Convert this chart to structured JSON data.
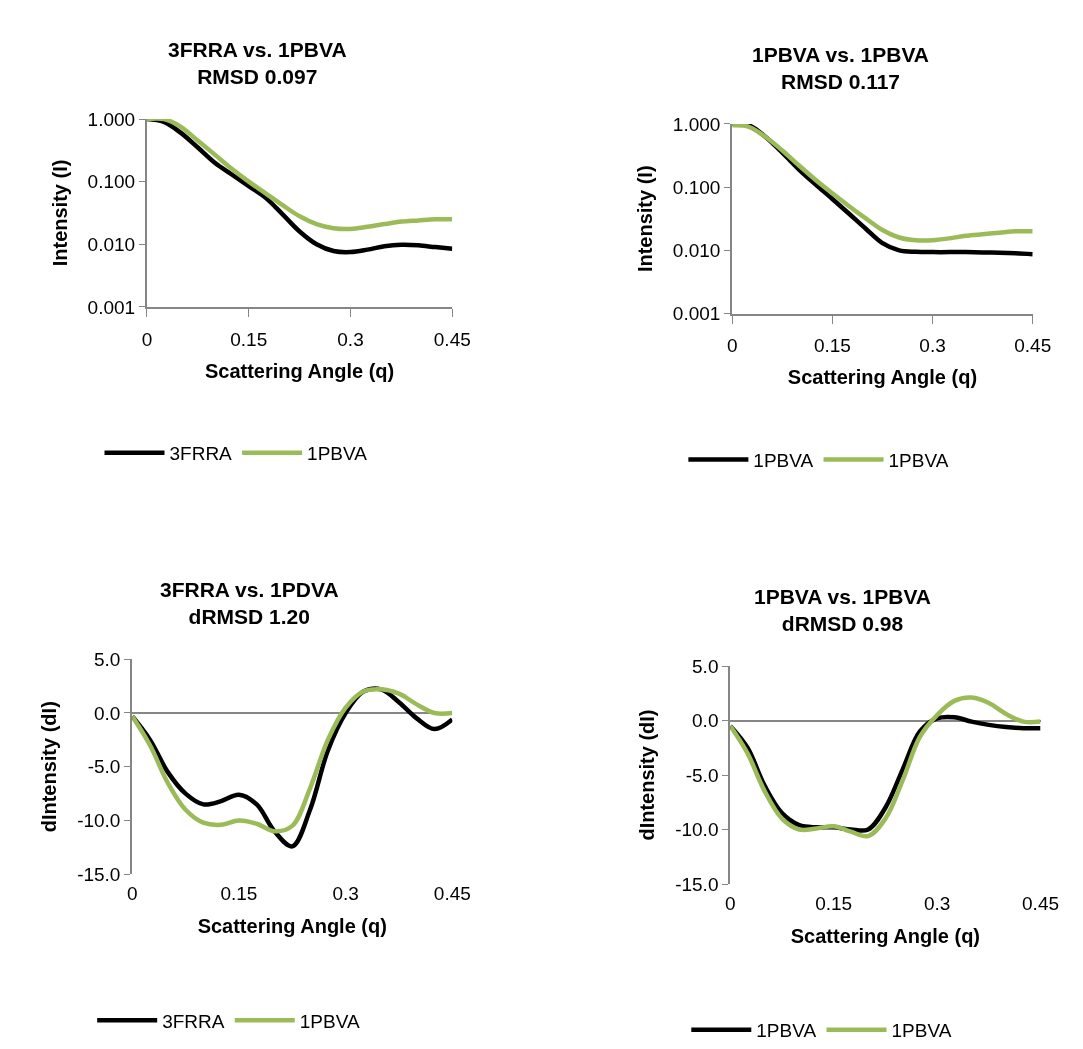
{
  "chart_data": [
    {
      "type": "line",
      "title": "3FRRA vs. 1PBVA",
      "subtitle": "RMSD 0.097",
      "xlabel": "Scattering Angle (q)",
      "ylabel": "Intensity (I)",
      "log": "y",
      "legend": "bottom",
      "x": [
        0,
        0.025,
        0.05,
        0.075,
        0.1,
        0.125,
        0.15,
        0.175,
        0.2,
        0.225,
        0.25,
        0.275,
        0.3,
        0.325,
        0.35,
        0.375,
        0.4,
        0.425,
        0.45
      ],
      "xlim": [
        0,
        0.45
      ],
      "xticks": [
        0,
        0.15,
        0.3,
        0.45
      ],
      "ylim": [
        0.001,
        1
      ],
      "yticks": [
        {
          "value": 0.001,
          "label": "0.001"
        },
        {
          "value": 0.01,
          "label": "0.010"
        },
        {
          "value": 0.1,
          "label": "0.100"
        },
        {
          "value": 1,
          "label": "1.000"
        }
      ],
      "series": [
        {
          "name": "3FRRA",
          "color": "#000000",
          "values": [
            1.0,
            0.9,
            0.6,
            0.35,
            0.2,
            0.13,
            0.085,
            0.055,
            0.03,
            0.016,
            0.01,
            0.0078,
            0.0075,
            0.0082,
            0.0093,
            0.0098,
            0.0096,
            0.009,
            0.0085
          ]
        },
        {
          "name": "1PBVA",
          "color": "#9bbb59",
          "values": [
            1.0,
            1.0,
            0.75,
            0.45,
            0.27,
            0.16,
            0.1,
            0.065,
            0.042,
            0.028,
            0.021,
            0.018,
            0.0175,
            0.019,
            0.021,
            0.023,
            0.024,
            0.025,
            0.025
          ]
        }
      ]
    },
    {
      "type": "line",
      "title": "1PBVA vs. 1PBVA",
      "subtitle": "RMSD 0.117",
      "xlabel": "Scattering Angle (q)",
      "ylabel": "Intensity (I)",
      "log": "y",
      "legend": "bottom",
      "x": [
        0,
        0.025,
        0.05,
        0.075,
        0.1,
        0.125,
        0.15,
        0.175,
        0.2,
        0.225,
        0.25,
        0.275,
        0.3,
        0.325,
        0.35,
        0.375,
        0.4,
        0.425,
        0.45
      ],
      "xlim": [
        0,
        0.45
      ],
      "xticks": [
        0,
        0.15,
        0.3,
        0.45
      ],
      "ylim": [
        0.001,
        1
      ],
      "yticks": [
        {
          "value": 0.001,
          "label": "0.001"
        },
        {
          "value": 0.01,
          "label": "0.010"
        },
        {
          "value": 0.1,
          "label": "0.100"
        },
        {
          "value": 1,
          "label": "1.000"
        }
      ],
      "series": [
        {
          "name": "1PBVA",
          "color": "#000000",
          "values": [
            1.0,
            0.95,
            0.62,
            0.35,
            0.19,
            0.11,
            0.065,
            0.038,
            0.022,
            0.013,
            0.01,
            0.0095,
            0.0094,
            0.0094,
            0.0094,
            0.0093,
            0.0092,
            0.009,
            0.0087
          ]
        },
        {
          "name": "1PBVA",
          "color": "#9bbb59",
          "values": [
            0.95,
            0.9,
            0.62,
            0.38,
            0.22,
            0.13,
            0.08,
            0.05,
            0.032,
            0.021,
            0.016,
            0.0145,
            0.0145,
            0.0155,
            0.017,
            0.018,
            0.019,
            0.02,
            0.02
          ]
        }
      ]
    },
    {
      "type": "line",
      "title": "3FRRA vs. 1PDVA",
      "subtitle": "dRMSD 1.20",
      "xlabel": "Scattering Angle (q)",
      "ylabel": "dIntensity (dI)",
      "legend": "bottom",
      "x": [
        0,
        0.025,
        0.05,
        0.075,
        0.1,
        0.125,
        0.15,
        0.175,
        0.2,
        0.225,
        0.25,
        0.275,
        0.3,
        0.325,
        0.35,
        0.375,
        0.4,
        0.425,
        0.45
      ],
      "xlim": [
        0,
        0.45
      ],
      "xticks": [
        0,
        0.15,
        0.3,
        0.45
      ],
      "ylim": [
        -15,
        5
      ],
      "yticks": [
        {
          "value": -15,
          "label": "-15.0"
        },
        {
          "value": -10,
          "label": "-10.0"
        },
        {
          "value": -5,
          "label": "-5.0"
        },
        {
          "value": 0,
          "label": "0.0"
        },
        {
          "value": 5,
          "label": "5.0"
        }
      ],
      "series": [
        {
          "name": "3FRRA",
          "color": "#000000",
          "values": [
            -0.3,
            -2.5,
            -5.5,
            -7.5,
            -8.5,
            -8.2,
            -7.6,
            -8.5,
            -11,
            -12.4,
            -9,
            -3.5,
            0,
            2,
            2.2,
            1,
            -0.5,
            -1.5,
            -0.6
          ]
        },
        {
          "name": "1PBVA",
          "color": "#9bbb59",
          "values": [
            -0.3,
            -3,
            -6.5,
            -9,
            -10.2,
            -10.4,
            -10,
            -10.3,
            -11,
            -10.5,
            -7,
            -2.5,
            0.5,
            2,
            2.2,
            1.8,
            0.8,
            0,
            0
          ]
        }
      ]
    },
    {
      "type": "line",
      "title": "1PBVA vs. 1PBVA",
      "subtitle": "dRMSD 0.98",
      "xlabel": "Scattering Angle (q)",
      "ylabel": "dIntensity (dI)",
      "legend": "bottom",
      "x": [
        0,
        0.025,
        0.05,
        0.075,
        0.1,
        0.125,
        0.15,
        0.175,
        0.2,
        0.225,
        0.25,
        0.275,
        0.3,
        0.325,
        0.35,
        0.375,
        0.4,
        0.425,
        0.45
      ],
      "xlim": [
        0,
        0.45
      ],
      "xticks": [
        0,
        0.15,
        0.3,
        0.45
      ],
      "ylim": [
        -15,
        5
      ],
      "yticks": [
        {
          "value": -15,
          "label": "-15.0"
        },
        {
          "value": -10,
          "label": "-10.0"
        },
        {
          "value": -5,
          "label": "-5.0"
        },
        {
          "value": 0,
          "label": "0.0"
        },
        {
          "value": 5,
          "label": "5.0"
        }
      ],
      "series": [
        {
          "name": "1PBVA",
          "color": "#000000",
          "values": [
            -0.5,
            -2.5,
            -6,
            -8.5,
            -9.6,
            -9.8,
            -9.8,
            -10,
            -10,
            -8,
            -4.5,
            -1,
            0.2,
            0.3,
            -0.1,
            -0.4,
            -0.6,
            -0.7,
            -0.7
          ]
        },
        {
          "name": "1PBVA",
          "color": "#9bbb59",
          "values": [
            -0.5,
            -3,
            -6.5,
            -9,
            -10,
            -9.9,
            -9.7,
            -10.2,
            -10.6,
            -9,
            -5.5,
            -1.5,
            0.5,
            1.8,
            2.1,
            1.6,
            0.6,
            -0.1,
            -0.1
          ]
        }
      ]
    }
  ]
}
